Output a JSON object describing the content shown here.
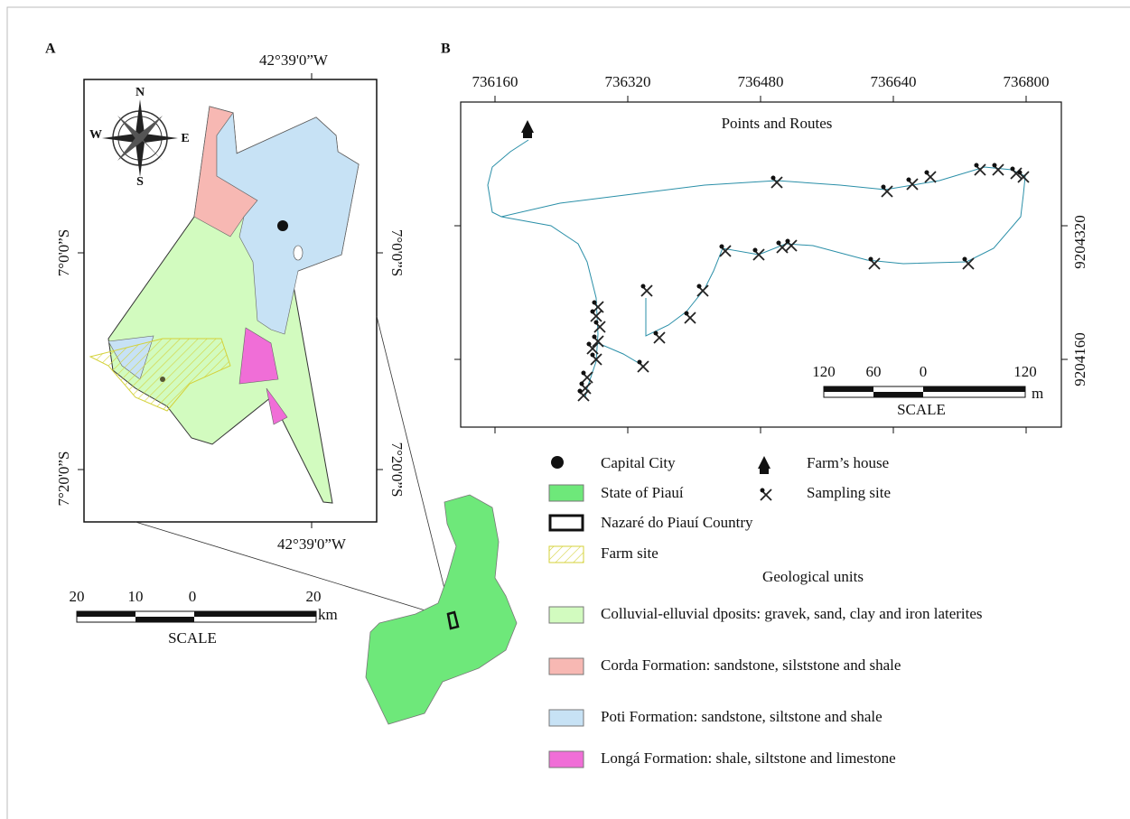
{
  "panel_a": {
    "label": "A",
    "lon_top": "42°39'0”W",
    "lon_bottom": "42°39'0”W",
    "lat_left": [
      "7°0'0”S",
      "7°20'0”S"
    ],
    "lat_right": [
      "7°0'0”S",
      "7°20'0”S"
    ],
    "compass": {
      "n": "N",
      "e": "E",
      "s": "S",
      "w": "W"
    },
    "scale": {
      "ticks": [
        "20",
        "10",
        "0",
        "20"
      ],
      "unit": "km",
      "title": "SCALE"
    }
  },
  "panel_b": {
    "label": "B",
    "title": "Points and Routes",
    "x_labels": [
      "736160",
      "736320",
      "736480",
      "736640",
      "736800"
    ],
    "y_labels": [
      "9204320",
      "9204160"
    ],
    "scale": {
      "ticks": [
        "120",
        "60",
        "0",
        "120"
      ],
      "unit": "m",
      "title": "SCALE"
    }
  },
  "legend": {
    "capital_city": "Capital City",
    "farm_house": "Farm’s house",
    "state": "State of Piauí",
    "sampling_site": "Sampling site",
    "country": "Nazaré do Piauí Country",
    "farm_site": "Farm site",
    "geological_units": "Geological units",
    "units": [
      "Colluvial-elluvial dposits: gravek, sand, clay and iron laterites",
      "Corda Formation: sandstone, silststone and shale",
      "Poti Formation: sandstone, siltstone and shale",
      "Longá Formation: shale, siltstone and limestone"
    ]
  }
}
